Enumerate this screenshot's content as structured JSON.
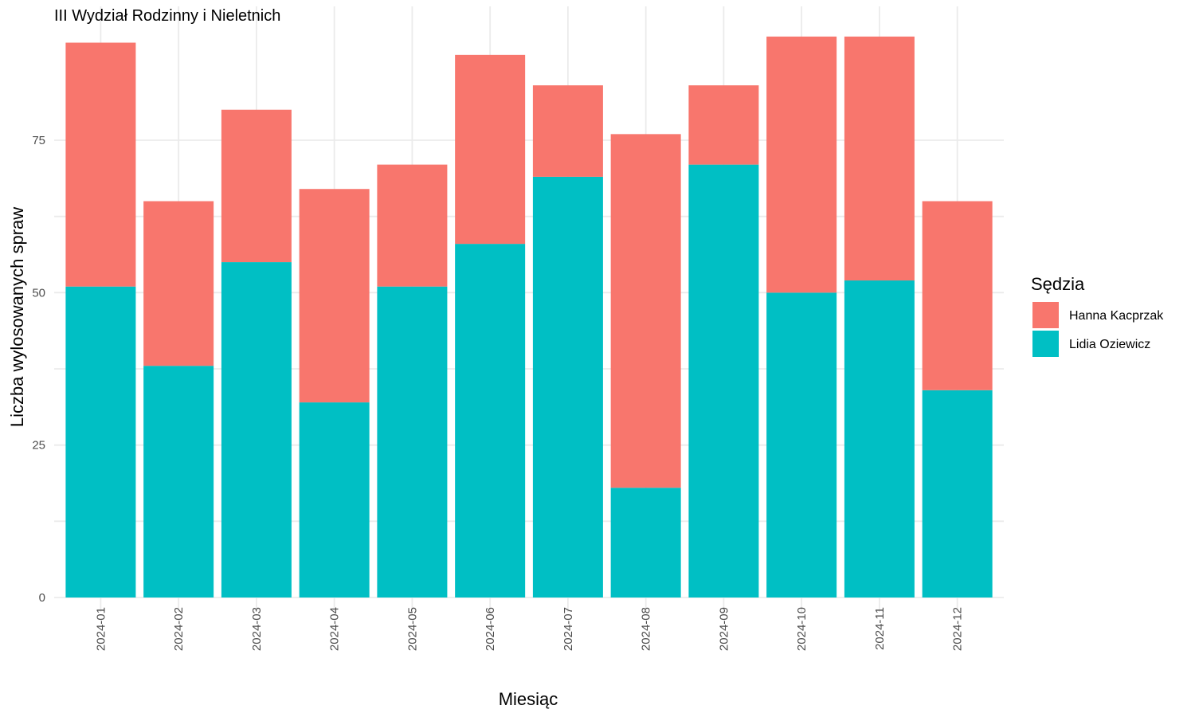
{
  "chart_data": {
    "type": "bar",
    "stacked": true,
    "title": "III Wydział Rodzinny i Nieletnich",
    "xlabel": "Miesiąc",
    "ylabel": "Liczba wylosowanych spraw",
    "categories": [
      "2024-01",
      "2024-02",
      "2024-03",
      "2024-04",
      "2024-05",
      "2024-06",
      "2024-07",
      "2024-08",
      "2024-09",
      "2024-10",
      "2024-11",
      "2024-12"
    ],
    "series": [
      {
        "name": "Lidia Oziewicz",
        "color": "#00BFC4",
        "values": [
          51,
          38,
          55,
          32,
          51,
          58,
          69,
          18,
          71,
          50,
          52,
          34
        ]
      },
      {
        "name": "Hanna Kacprzak",
        "color": "#F8766D",
        "values": [
          40,
          27,
          25,
          35,
          20,
          31,
          15,
          58,
          13,
          42,
          40,
          31
        ]
      }
    ],
    "ylim": [
      0,
      95
    ],
    "yticks": [
      0,
      25,
      50,
      75
    ],
    "grid": true,
    "legend": {
      "title": "Sędzia",
      "position": "right",
      "order": [
        "Hanna Kacprzak",
        "Lidia Oziewicz"
      ]
    }
  }
}
